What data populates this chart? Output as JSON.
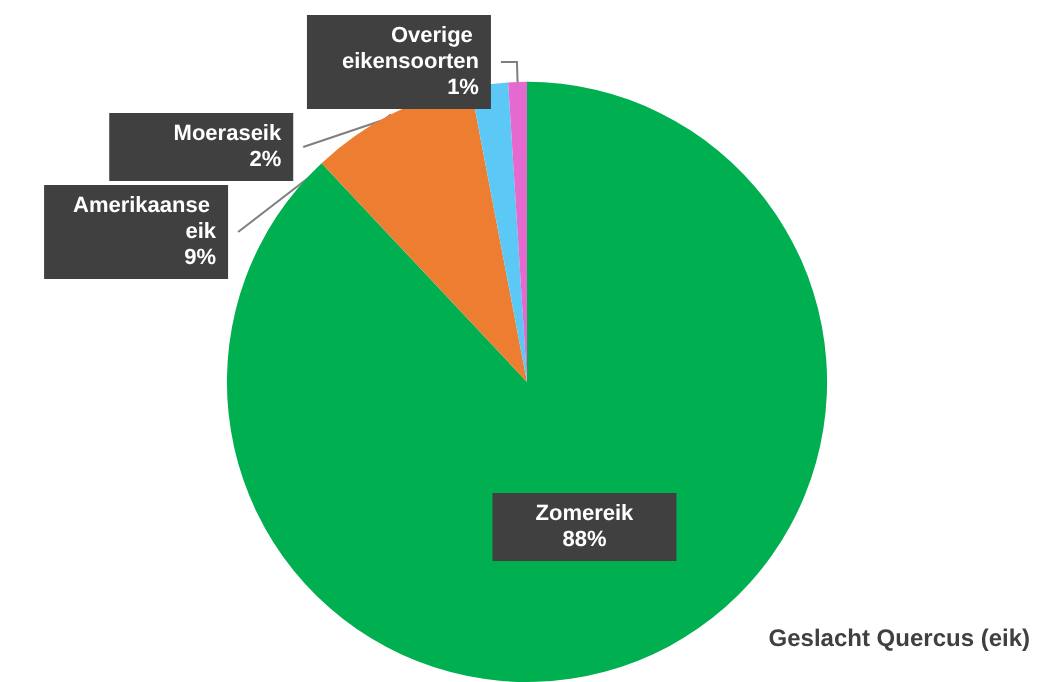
{
  "chart_data": {
    "type": "pie",
    "categories": [
      "Zomereik",
      "Amerikaanse eik",
      "Moeraseik",
      "Overige eikensoorten"
    ],
    "values": [
      88,
      9,
      2,
      1
    ],
    "value_labels": [
      "88%",
      "9%",
      "2%",
      "1%"
    ],
    "colors": [
      "#00b050",
      "#ed7d31",
      "#5bc8f5",
      "#e46ad0"
    ],
    "annotations": [
      "Geslacht Quercus (eik)"
    ],
    "legend": false
  }
}
